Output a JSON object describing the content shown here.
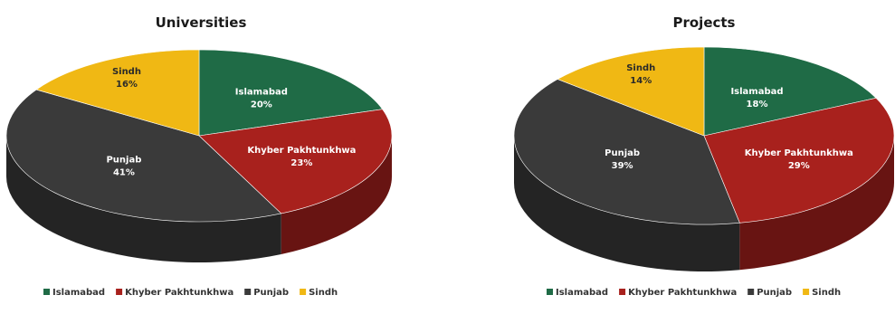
{
  "colors": {
    "Islamabad": "#1f6b46",
    "Khyber Pakhtunkhwa": "#a8211d",
    "Punjab": "#3a3a3a",
    "Sindh": "#f0b814"
  },
  "label_text_colors": {
    "Islamabad": "#ffffff",
    "Khyber Pakhtunkhwa": "#ffffff",
    "Punjab": "#ffffff",
    "Sindh": "#2a2a2a"
  },
  "chart_data": [
    {
      "type": "pie",
      "title": "Universities",
      "categories": [
        "Islamabad",
        "Khyber Pakhtunkhwa",
        "Punjab",
        "Sindh"
      ],
      "values": [
        20,
        23,
        41,
        16
      ],
      "value_labels": [
        "20%",
        "23%",
        "41%",
        "16%"
      ],
      "style": "3d",
      "legend": {
        "position": "bottom",
        "entries": [
          "Islamabad",
          "Khyber Pakhtunkhwa",
          "Punjab",
          "Sindh"
        ]
      }
    },
    {
      "type": "pie",
      "title": "Projects",
      "categories": [
        "Islamabad",
        "Khyber Pakhtunkhwa",
        "Punjab",
        "Sindh"
      ],
      "values": [
        18,
        29,
        39,
        14
      ],
      "value_labels": [
        "18%",
        "29%",
        "39%",
        "14%"
      ],
      "style": "3d",
      "legend": {
        "position": "bottom",
        "entries": [
          "Islamabad",
          "Khyber Pakhtunkhwa",
          "Punjab",
          "Sindh"
        ]
      }
    }
  ]
}
